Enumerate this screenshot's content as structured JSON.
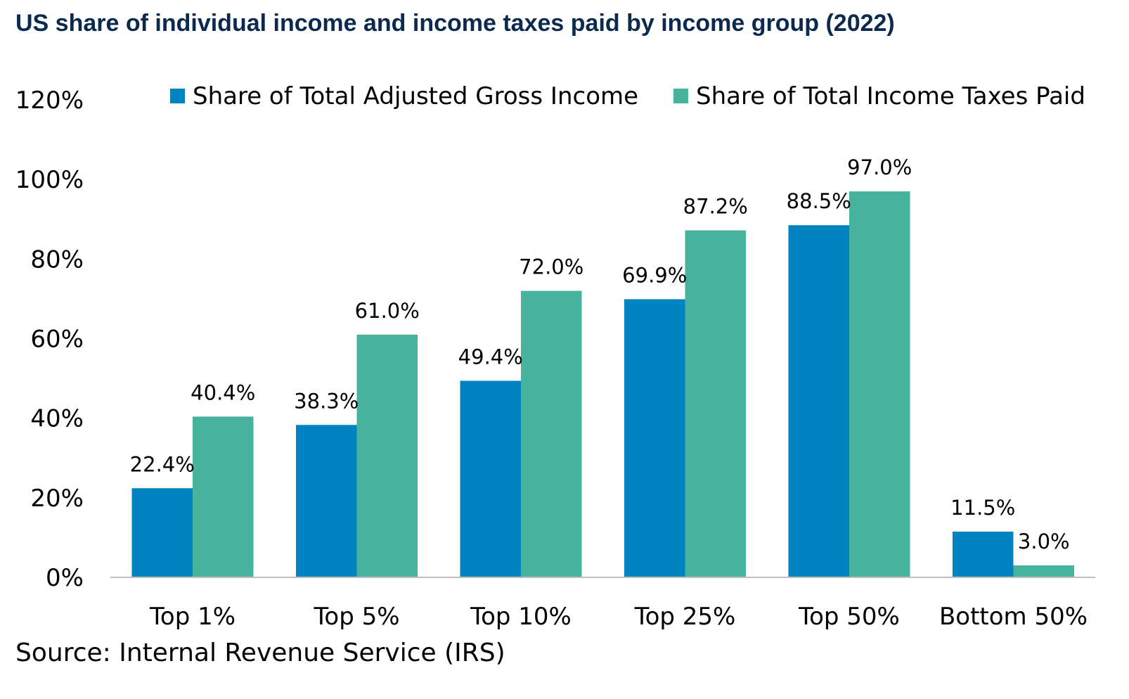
{
  "chart_data": {
    "type": "bar",
    "title": "US share of individual income and income taxes paid by income group (2022)",
    "categories": [
      "Top 1%",
      "Top 5%",
      "Top 10%",
      "Top 25%",
      "Top 50%",
      "Bottom 50%"
    ],
    "series": [
      {
        "name": "Share of Total Adjusted Gross Income",
        "values": [
          22.4,
          38.3,
          49.4,
          69.9,
          88.5,
          11.5
        ],
        "labels": [
          "22.4%",
          "38.3%",
          "49.4%",
          "69.9%",
          "88.5%",
          "11.5%"
        ],
        "color": "#0083c1"
      },
      {
        "name": "Share of Total Income Taxes Paid",
        "values": [
          40.4,
          61.0,
          72.0,
          87.2,
          97.0,
          3.0
        ],
        "labels": [
          "40.4%",
          "61.0%",
          "72.0%",
          "87.2%",
          "97.0%",
          "3.0%"
        ],
        "color": "#47b39c"
      }
    ],
    "ylim": [
      0,
      120
    ],
    "yticks": [
      "0%",
      "20%",
      "40%",
      "60%",
      "80%",
      "100%",
      "120%"
    ],
    "grid": false,
    "legend_position": "top-right",
    "source": "Source: Internal Revenue Service (IRS)"
  },
  "colors": {
    "title": "#0b2a4e",
    "axis": "#bfbfbf",
    "text": "#000000"
  }
}
